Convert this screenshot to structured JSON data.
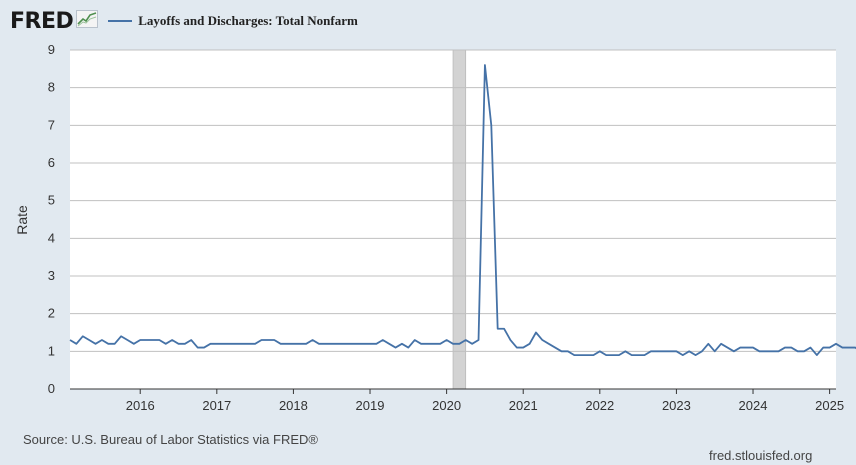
{
  "header": {
    "logo_text": "FRED",
    "legend_label": "Layoffs and Discharges: Total Nonfarm"
  },
  "footer": {
    "source": "Source: U.S. Bureau of Labor Statistics via FRED®",
    "site": "fred.stlouisfed.org"
  },
  "colors": {
    "background": "#e1e9f0",
    "plot_background": "#ffffff",
    "series": "#4572a7",
    "recession": "#d3d3d3",
    "grid": "#c0c0c0"
  },
  "icons": [
    "fred-chart-icon"
  ],
  "chart_data": {
    "type": "line",
    "title": "",
    "xlabel": "",
    "ylabel": "Rate",
    "ylim": [
      0,
      9
    ],
    "xlim": [
      "2015-02",
      "2025-02"
    ],
    "y_ticks": [
      "0",
      "1",
      "2",
      "3",
      "4",
      "5",
      "6",
      "7",
      "8",
      "9"
    ],
    "x_ticks": [
      {
        "label": "2016",
        "date": "2016-01"
      },
      {
        "label": "2017",
        "date": "2017-01"
      },
      {
        "label": "2018",
        "date": "2018-01"
      },
      {
        "label": "2019",
        "date": "2019-01"
      },
      {
        "label": "2020",
        "date": "2020-01"
      },
      {
        "label": "2021",
        "date": "2021-01"
      },
      {
        "label": "2022",
        "date": "2022-01"
      },
      {
        "label": "2023",
        "date": "2023-01"
      },
      {
        "label": "2024",
        "date": "2024-01"
      },
      {
        "label": "2025",
        "date": "2025-01"
      }
    ],
    "grid": true,
    "legend": "top-left",
    "recession": {
      "start": "2020-02",
      "end": "2020-04"
    },
    "series": [
      {
        "name": "Layoffs and Discharges: Total Nonfarm",
        "start": "2015-02",
        "values": [
          1.3,
          1.2,
          1.4,
          1.3,
          1.2,
          1.3,
          1.2,
          1.2,
          1.4,
          1.3,
          1.2,
          1.3,
          1.3,
          1.3,
          1.3,
          1.2,
          1.3,
          1.2,
          1.2,
          1.3,
          1.1,
          1.1,
          1.2,
          1.2,
          1.2,
          1.2,
          1.2,
          1.2,
          1.2,
          1.2,
          1.3,
          1.3,
          1.3,
          1.2,
          1.2,
          1.2,
          1.2,
          1.2,
          1.3,
          1.2,
          1.2,
          1.2,
          1.2,
          1.2,
          1.2,
          1.2,
          1.2,
          1.2,
          1.2,
          1.3,
          1.2,
          1.1,
          1.2,
          1.1,
          1.3,
          1.2,
          1.2,
          1.2,
          1.2,
          1.3,
          1.2,
          1.2,
          1.3,
          1.2,
          1.3,
          8.6,
          7.0,
          1.6,
          1.6,
          1.3,
          1.1,
          1.1,
          1.2,
          1.5,
          1.3,
          1.2,
          1.1,
          1.0,
          1.0,
          0.9,
          0.9,
          0.9,
          0.9,
          1.0,
          0.9,
          0.9,
          0.9,
          1.0,
          0.9,
          0.9,
          0.9,
          1.0,
          1.0,
          1.0,
          1.0,
          1.0,
          0.9,
          1.0,
          0.9,
          1.0,
          1.2,
          1.0,
          1.2,
          1.1,
          1.0,
          1.1,
          1.1,
          1.1,
          1.0,
          1.0,
          1.0,
          1.0,
          1.1,
          1.1,
          1.0,
          1.0,
          1.1,
          0.9,
          1.1,
          1.1,
          1.2,
          1.1,
          1.1,
          1.1,
          1.0
        ]
      }
    ]
  }
}
